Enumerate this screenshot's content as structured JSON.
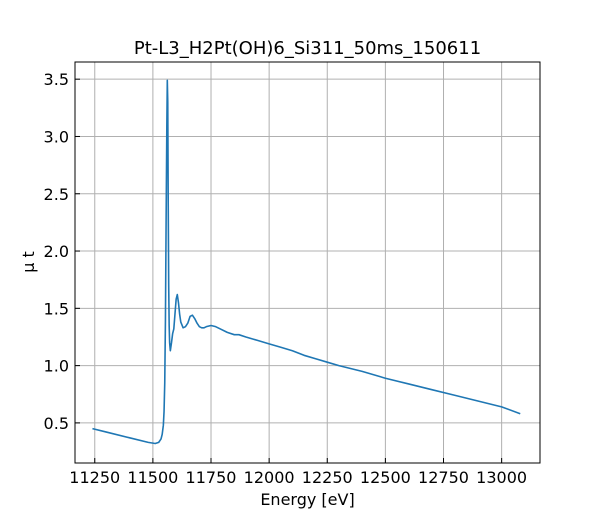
{
  "chart_data": {
    "type": "line",
    "title": "Pt-L3_H2Pt(OH)6_Si311_50ms_150611",
    "xlabel": "Energy [eV]",
    "ylabel": "μ t",
    "xlim": [
      11165,
      13165
    ],
    "ylim": [
      0.15,
      3.65
    ],
    "xticks": [
      11250,
      11500,
      11750,
      12000,
      12250,
      12500,
      12750,
      13000
    ],
    "yticks": [
      0.5,
      1.0,
      1.5,
      2.0,
      2.5,
      3.0,
      3.5
    ],
    "xtick_labels": [
      "11250",
      "11500",
      "11750",
      "12000",
      "12250",
      "12500",
      "12750",
      "13000"
    ],
    "ytick_labels": [
      "0.5",
      "1.0",
      "1.5",
      "2.0",
      "2.5",
      "3.0",
      "3.5"
    ],
    "grid": true,
    "series": [
      {
        "color": "#1f77b4",
        "x": [
          11240,
          11300,
          11400,
          11480,
          11510,
          11525,
          11535,
          11540,
          11545,
          11548,
          11551,
          11554,
          11557,
          11560,
          11562,
          11564,
          11566,
          11568,
          11570,
          11572,
          11575,
          11580,
          11585,
          11590,
          11595,
          11600,
          11605,
          11610,
          11615,
          11620,
          11630,
          11640,
          11650,
          11660,
          11670,
          11680,
          11690,
          11700,
          11710,
          11720,
          11730,
          11750,
          11770,
          11790,
          11820,
          11850,
          11870,
          11900,
          11950,
          12000,
          12050,
          12100,
          12150,
          12200,
          12250,
          12300,
          12400,
          12500,
          12600,
          12700,
          12800,
          12900,
          13000,
          13080
        ],
        "y": [
          0.45,
          0.42,
          0.37,
          0.33,
          0.32,
          0.33,
          0.36,
          0.4,
          0.48,
          0.6,
          0.85,
          1.4,
          2.3,
          3.1,
          3.49,
          3.3,
          2.4,
          1.7,
          1.35,
          1.2,
          1.13,
          1.2,
          1.28,
          1.32,
          1.45,
          1.58,
          1.62,
          1.55,
          1.45,
          1.38,
          1.33,
          1.34,
          1.37,
          1.43,
          1.44,
          1.41,
          1.37,
          1.34,
          1.33,
          1.33,
          1.34,
          1.35,
          1.34,
          1.32,
          1.29,
          1.27,
          1.27,
          1.25,
          1.22,
          1.19,
          1.16,
          1.13,
          1.09,
          1.06,
          1.03,
          1.0,
          0.95,
          0.89,
          0.84,
          0.79,
          0.74,
          0.69,
          0.64,
          0.58
        ]
      }
    ]
  }
}
